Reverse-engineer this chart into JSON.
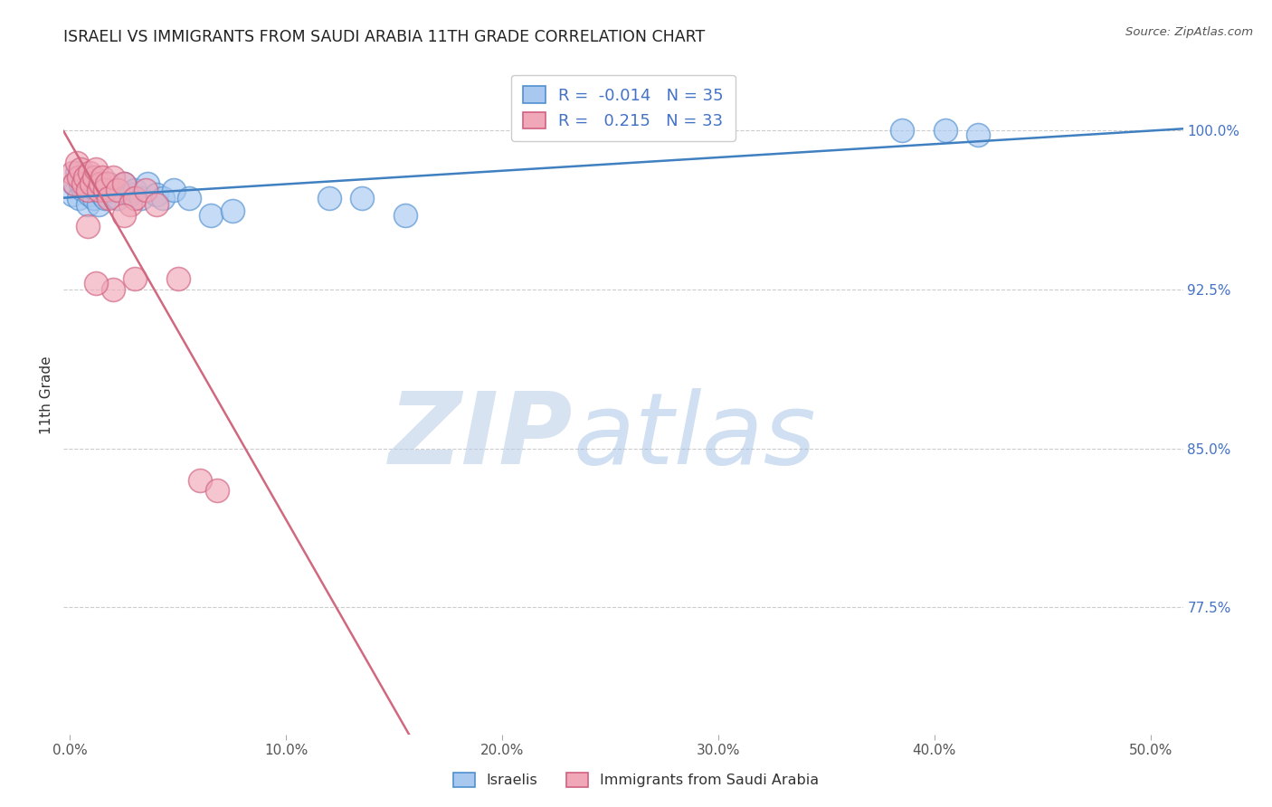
{
  "title": "ISRAELI VS IMMIGRANTS FROM SAUDI ARABIA 11TH GRADE CORRELATION CHART",
  "source": "Source: ZipAtlas.com",
  "ylabel": "11th Grade",
  "xlabel_ticks": [
    "0.0%",
    "10.0%",
    "20.0%",
    "30.0%",
    "40.0%",
    "50.0%"
  ],
  "xlabel_vals": [
    0.0,
    0.1,
    0.2,
    0.3,
    0.4,
    0.5
  ],
  "ylabel_ticks": [
    "77.5%",
    "85.0%",
    "92.5%",
    "100.0%"
  ],
  "ylabel_vals": [
    0.775,
    0.85,
    0.925,
    1.0
  ],
  "ylim": [
    0.715,
    1.035
  ],
  "xlim": [
    -0.003,
    0.515
  ],
  "r_israeli": -0.014,
  "n_israeli": 35,
  "r_saudi": 0.215,
  "n_saudi": 33,
  "israeli_color": "#A8C8F0",
  "saudi_color": "#F0A8B8",
  "israeli_edge_color": "#5090D0",
  "saudi_edge_color": "#D06080",
  "israeli_line_color": "#4080C0",
  "saudi_line_color": "#D06880",
  "legend_r_color": "#4472C4",
  "israeli_x": [
    0.001,
    0.002,
    0.003,
    0.004,
    0.005,
    0.006,
    0.007,
    0.008,
    0.009,
    0.01,
    0.011,
    0.012,
    0.013,
    0.015,
    0.016,
    0.018,
    0.02,
    0.022,
    0.025,
    0.028,
    0.03,
    0.033,
    0.036,
    0.04,
    0.043,
    0.048,
    0.055,
    0.065,
    0.075,
    0.12,
    0.135,
    0.155,
    0.385,
    0.405,
    0.42
  ],
  "israeli_y": [
    0.97,
    0.975,
    0.98,
    0.968,
    0.975,
    0.972,
    0.978,
    0.965,
    0.97,
    0.975,
    0.968,
    0.972,
    0.965,
    0.97,
    0.968,
    0.975,
    0.972,
    0.968,
    0.975,
    0.97,
    0.972,
    0.968,
    0.975,
    0.97,
    0.968,
    0.972,
    0.968,
    0.96,
    0.962,
    0.968,
    0.968,
    0.96,
    1.0,
    1.0,
    0.998
  ],
  "saudi_x": [
    0.001,
    0.002,
    0.003,
    0.004,
    0.005,
    0.006,
    0.007,
    0.008,
    0.009,
    0.01,
    0.011,
    0.012,
    0.013,
    0.014,
    0.015,
    0.016,
    0.017,
    0.018,
    0.02,
    0.022,
    0.025,
    0.028,
    0.03,
    0.035,
    0.04,
    0.05,
    0.06,
    0.068,
    0.02,
    0.025,
    0.03,
    0.008,
    0.012
  ],
  "saudi_y": [
    0.98,
    0.975,
    0.985,
    0.978,
    0.982,
    0.975,
    0.978,
    0.972,
    0.98,
    0.975,
    0.978,
    0.982,
    0.972,
    0.975,
    0.978,
    0.972,
    0.975,
    0.968,
    0.978,
    0.972,
    0.975,
    0.965,
    0.968,
    0.972,
    0.965,
    0.93,
    0.835,
    0.83,
    0.925,
    0.96,
    0.93,
    0.955,
    0.928
  ],
  "background_color": "#FFFFFF",
  "grid_color": "#CCCCCC"
}
